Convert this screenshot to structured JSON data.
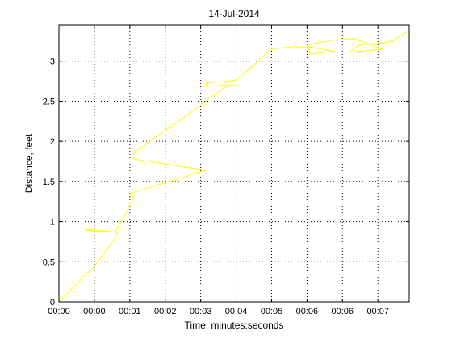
{
  "chart_data": {
    "type": "line",
    "title": "14-Jul-2014",
    "xlabel": "Time, minutes:seconds",
    "ylabel": "Distance, feet",
    "xlim": [
      0,
      0.00509
    ],
    "ylim": [
      0,
      3.45
    ],
    "grid": true,
    "x_ticks": [
      0,
      0.000515,
      0.00103,
      0.001545,
      0.00206,
      0.002575,
      0.00309,
      0.003605,
      0.00412,
      0.004635
    ],
    "x_tick_labels": [
      "00:00",
      "00:00",
      "00:01",
      "00:02",
      "00:03",
      "00:04",
      "00:05",
      "00:06",
      "00:06",
      "00:07"
    ],
    "y_ticks": [
      0,
      0.5,
      1,
      1.5,
      2,
      2.5,
      3
    ],
    "y_tick_labels": [
      "0",
      "0.5",
      "1",
      "1.5",
      "2",
      "2.5",
      "3"
    ],
    "series": [
      {
        "name": "",
        "color": "#ffff00",
        "x": [
          0,
          0.000392,
          0.000494,
          0.000856,
          0.000856,
          0.000817,
          0.000443,
          0.000392,
          0.000494,
          0.00082,
          0.00109,
          0.00103,
          0.002139,
          0.001081,
          0.001092,
          0.00174,
          0.00242,
          0.002575,
          0.00214,
          0.00214,
          0.002575,
          0.00309,
          0.00342,
          0.00368,
          0.003605,
          0.004005,
          0.003658,
          0.003605,
          0.003964,
          0.004295,
          0.004712,
          0.004223,
          0.004346,
          0.004738,
          0.004866,
          0.004814,
          0.005091
        ],
        "y": [
          0,
          0.34,
          0.42,
          0.84,
          0.84,
          0.87,
          0.9,
          0.9,
          0.88,
          0.87,
          1.3,
          1.35,
          1.64,
          1.78,
          1.86,
          2.25,
          2.68,
          2.7,
          2.69,
          2.73,
          2.76,
          3.15,
          3.18,
          3.16,
          3.18,
          3.12,
          3.09,
          3.2,
          3.26,
          3.28,
          3.15,
          3.11,
          3.2,
          3.23,
          3.26,
          3.24,
          3.38
        ]
      }
    ]
  }
}
